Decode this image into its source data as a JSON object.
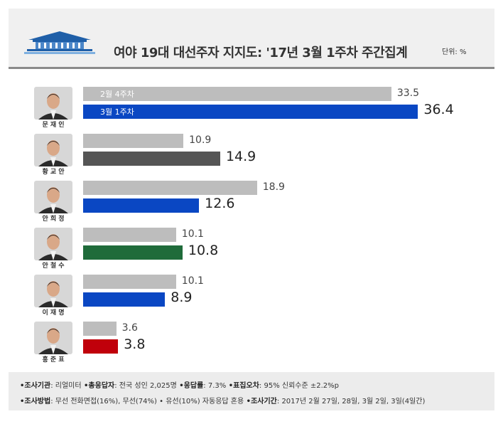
{
  "header": {
    "title": "여야 19대 대선주자 지지도: '17년 3월 1주차 주간집계",
    "unit": "단위: %"
  },
  "chart_data": {
    "type": "bar",
    "title": "여야 19대 대선주자 지지도: '17년 3월 1주차 주간집계",
    "categories": [
      "문재인",
      "황교안",
      "안희정",
      "안철수",
      "이재명",
      "홍준표"
    ],
    "series": [
      {
        "name": "2월 4주차",
        "values": [
          33.5,
          10.9,
          18.9,
          10.1,
          10.1,
          3.6
        ]
      },
      {
        "name": "3월 1주차",
        "values": [
          36.4,
          14.9,
          12.6,
          10.8,
          8.9,
          3.8
        ]
      }
    ],
    "current_colors": [
      "#0a47c3",
      "#555555",
      "#0a47c3",
      "#1f6b3a",
      "#0a47c3",
      "#c0000b"
    ],
    "previous_color": "#bdbdbd",
    "xlim": [
      0,
      38
    ],
    "grid": false
  },
  "footer": {
    "line1": [
      {
        "label": "•조사기관",
        "value": ": 리얼미터"
      },
      {
        "label": " •총응답자",
        "value": ": 전국 성인 2,025명"
      },
      {
        "label": " •응답률",
        "value": ": 7.3%"
      },
      {
        "label": " •표집오차",
        "value": ": 95% 신뢰수준 ±2.2%p"
      }
    ],
    "line2": [
      {
        "label": "•조사방법",
        "value": ": 무선 전화면접(16%), 무선(74%) • 유선(10%) 자동응답 혼용"
      },
      {
        "label": " •조사기간",
        "value": ": 2017년 2월 27일, 28일, 3월 2일, 3일(4일간)"
      }
    ]
  }
}
